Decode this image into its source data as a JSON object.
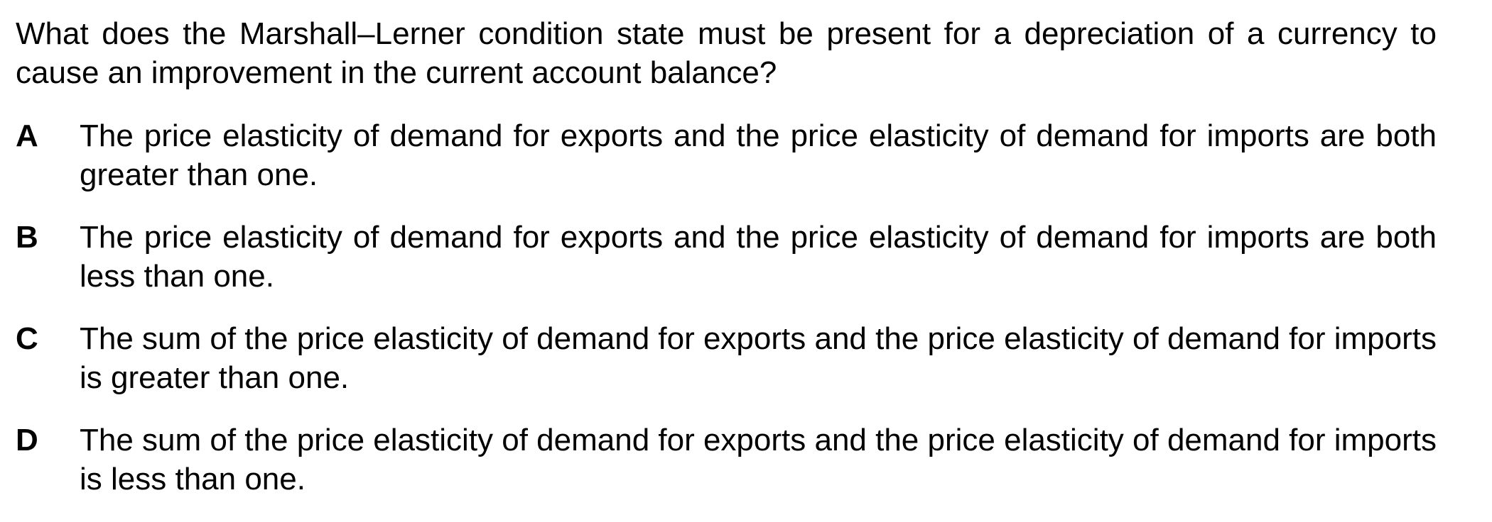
{
  "question": "What does the Marshall–Lerner condition state must be present for a depreciation of a currency to cause an improvement in the current account balance?",
  "options": [
    {
      "letter": "A",
      "text": "The price elasticity of demand for exports and the price elasticity of demand for imports are both greater than one."
    },
    {
      "letter": "B",
      "text": "The price elasticity of demand for exports and the price elasticity of demand for imports are both less than one."
    },
    {
      "letter": "C",
      "text": "The sum of the price elasticity of demand for exports and the price elasticity of demand for imports is greater than one."
    },
    {
      "letter": "D",
      "text": "The sum of the price elasticity of demand for exports and the price elasticity of demand for imports is less than one."
    }
  ]
}
